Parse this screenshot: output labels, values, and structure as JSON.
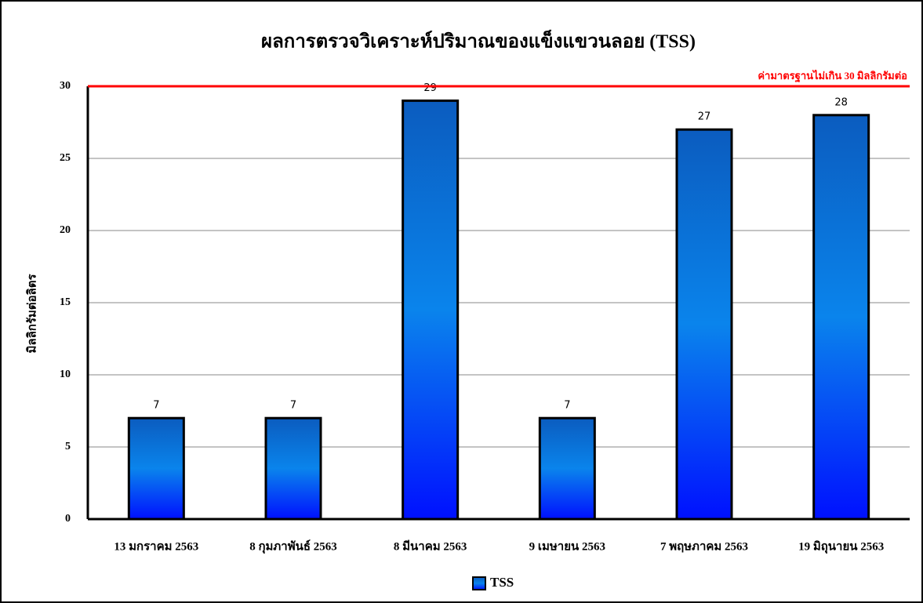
{
  "chart_data": {
    "type": "bar",
    "title": "ผลการตรวจวิเคราะห์ปริมาณของแข็งแขวนลอย (TSS)",
    "y_label": "มิลลิกรัมต่อลิตร",
    "categories": [
      "13 มกราคม 2563",
      "8 กุมภาพันธ์ 2563",
      "8 มีนาคม 2563",
      "9 เมษายน 2563",
      "7 พฤษภาคม 2563",
      "19 มิถุนายน 2563"
    ],
    "series": [
      {
        "name": "TSS",
        "color": "#0a84ec",
        "values": [
          7,
          7,
          29,
          7,
          27,
          28
        ]
      }
    ],
    "ylim": [
      0,
      30
    ],
    "yticks": [
      0,
      5,
      10,
      15,
      20,
      25,
      30
    ],
    "grid": true,
    "reference_line": {
      "value": 30,
      "label": "ค่ามาตรฐานไม่เกิน 30 มิลลิกรัมต่อ",
      "color": "#ff0000"
    },
    "legend": "bottom"
  }
}
